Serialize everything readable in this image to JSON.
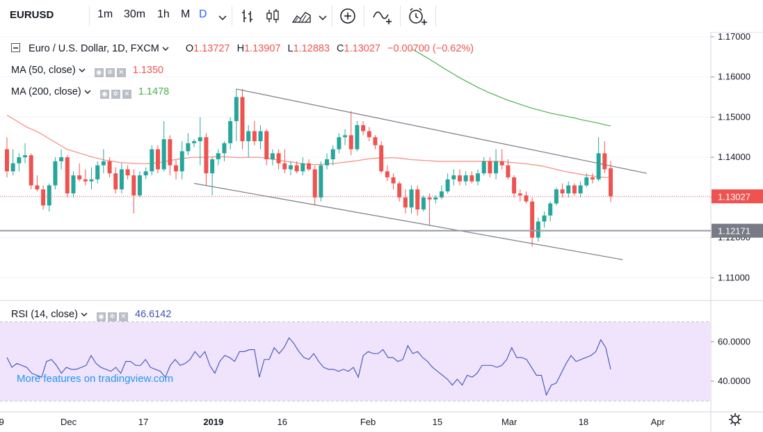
{
  "toolbar": {
    "symbol": "EURUSD",
    "intervals": [
      "1m",
      "30m",
      "1h",
      "M",
      "D"
    ],
    "active_interval": "D",
    "icons": [
      "chevron-down-icon",
      "bar-style-icon",
      "candles-icon",
      "area-icon",
      "chevron-down-icon",
      "add-indicator-icon",
      "compare-icon",
      "alert-icon"
    ]
  },
  "legend": {
    "title": "Euro / U.S. Dollar, 1D, FXCM",
    "open_label": "O",
    "open": "1.13727",
    "high_label": "H",
    "high": "1.13907",
    "low_label": "L",
    "low": "1.12883",
    "close_label": "C",
    "close": "1.13027",
    "change": "−0.00700 (−0.62%)",
    "ma50_label": "MA (50, close)",
    "ma50_value": "1.1350",
    "ma200_label": "MA (200, close)",
    "ma200_value": "1.1478",
    "rsi_label": "RSI (14, close)",
    "rsi_value": "46.6142"
  },
  "promo": "More features on tradingview.com",
  "colors": {
    "up": "#26a69a",
    "down": "#ef5350",
    "ma50": "#f48a7e",
    "ma200": "#4caf50",
    "rsi": "#3f51b5",
    "rsi_band": "#efe4fb",
    "channel": "#787b86",
    "support": "#9598a1"
  },
  "chart_data": [
    {
      "type": "candlestick",
      "title": "Euro / U.S. Dollar, 1D, FXCM",
      "y_axis": {
        "ticks": [
          "1.17000",
          "1.16000",
          "1.15000",
          "1.14000",
          "1.13000",
          "1.12000",
          "1.11000"
        ],
        "range": [
          1.1045,
          1.1712
        ],
        "last_price_label": "1.13027",
        "level_label": "1.12171"
      },
      "x_axis": {
        "ticks": [
          "9",
          "Dec",
          "17",
          "2019",
          "16",
          "Feb",
          "15",
          "Mar",
          "18",
          "Apr"
        ]
      },
      "candles": [
        {
          "o": 1.142,
          "h": 1.145,
          "l": 1.135,
          "c": 1.1365
        },
        {
          "o": 1.1365,
          "h": 1.142,
          "l": 1.1355,
          "c": 1.1385
        },
        {
          "o": 1.1385,
          "h": 1.141,
          "l": 1.1365,
          "c": 1.14
        },
        {
          "o": 1.14,
          "h": 1.1435,
          "l": 1.1385,
          "c": 1.1405
        },
        {
          "o": 1.1405,
          "h": 1.141,
          "l": 1.132,
          "c": 1.133
        },
        {
          "o": 1.133,
          "h": 1.1355,
          "l": 1.1315,
          "c": 1.132
        },
        {
          "o": 1.132,
          "h": 1.133,
          "l": 1.127,
          "c": 1.128
        },
        {
          "o": 1.128,
          "h": 1.1335,
          "l": 1.1265,
          "c": 1.133
        },
        {
          "o": 1.133,
          "h": 1.14,
          "l": 1.132,
          "c": 1.139
        },
        {
          "o": 1.139,
          "h": 1.142,
          "l": 1.137,
          "c": 1.14
        },
        {
          "o": 1.14,
          "h": 1.1405,
          "l": 1.13,
          "c": 1.131
        },
        {
          "o": 1.131,
          "h": 1.1365,
          "l": 1.13,
          "c": 1.1355
        },
        {
          "o": 1.1355,
          "h": 1.1385,
          "l": 1.134,
          "c": 1.1345
        },
        {
          "o": 1.1345,
          "h": 1.137,
          "l": 1.133,
          "c": 1.134
        },
        {
          "o": 1.134,
          "h": 1.1375,
          "l": 1.132,
          "c": 1.1345
        },
        {
          "o": 1.1345,
          "h": 1.139,
          "l": 1.1335,
          "c": 1.138
        },
        {
          "o": 1.138,
          "h": 1.142,
          "l": 1.136,
          "c": 1.139
        },
        {
          "o": 1.139,
          "h": 1.14,
          "l": 1.135,
          "c": 1.136
        },
        {
          "o": 1.136,
          "h": 1.1375,
          "l": 1.131,
          "c": 1.132
        },
        {
          "o": 1.132,
          "h": 1.1385,
          "l": 1.131,
          "c": 1.137
        },
        {
          "o": 1.137,
          "h": 1.138,
          "l": 1.1345,
          "c": 1.1355
        },
        {
          "o": 1.1355,
          "h": 1.137,
          "l": 1.126,
          "c": 1.1305
        },
        {
          "o": 1.1305,
          "h": 1.1365,
          "l": 1.13,
          "c": 1.1355
        },
        {
          "o": 1.1355,
          "h": 1.1375,
          "l": 1.1345,
          "c": 1.1365
        },
        {
          "o": 1.1365,
          "h": 1.143,
          "l": 1.1355,
          "c": 1.142
        },
        {
          "o": 1.142,
          "h": 1.143,
          "l": 1.136,
          "c": 1.137
        },
        {
          "o": 1.137,
          "h": 1.149,
          "l": 1.1365,
          "c": 1.1445
        },
        {
          "o": 1.1445,
          "h": 1.1455,
          "l": 1.1355,
          "c": 1.138
        },
        {
          "o": 1.138,
          "h": 1.1395,
          "l": 1.1345,
          "c": 1.1365
        },
        {
          "o": 1.1365,
          "h": 1.144,
          "l": 1.1345,
          "c": 1.1415
        },
        {
          "o": 1.1415,
          "h": 1.146,
          "l": 1.1405,
          "c": 1.1435
        },
        {
          "o": 1.1435,
          "h": 1.1445,
          "l": 1.1425,
          "c": 1.144
        },
        {
          "o": 1.144,
          "h": 1.15,
          "l": 1.138,
          "c": 1.145
        },
        {
          "o": 1.145,
          "h": 1.146,
          "l": 1.133,
          "c": 1.136
        },
        {
          "o": 1.136,
          "h": 1.14,
          "l": 1.1305,
          "c": 1.1395
        },
        {
          "o": 1.1395,
          "h": 1.142,
          "l": 1.138,
          "c": 1.141
        },
        {
          "o": 1.141,
          "h": 1.144,
          "l": 1.139,
          "c": 1.1435
        },
        {
          "o": 1.1435,
          "h": 1.15,
          "l": 1.142,
          "c": 1.149
        },
        {
          "o": 1.149,
          "h": 1.157,
          "l": 1.144,
          "c": 1.155
        },
        {
          "o": 1.155,
          "h": 1.157,
          "l": 1.142,
          "c": 1.144
        },
        {
          "o": 1.144,
          "h": 1.148,
          "l": 1.14,
          "c": 1.1465
        },
        {
          "o": 1.1465,
          "h": 1.149,
          "l": 1.143,
          "c": 1.144
        },
        {
          "o": 1.144,
          "h": 1.148,
          "l": 1.142,
          "c": 1.1465
        },
        {
          "o": 1.1465,
          "h": 1.147,
          "l": 1.138,
          "c": 1.1395
        },
        {
          "o": 1.1395,
          "h": 1.142,
          "l": 1.138,
          "c": 1.141
        },
        {
          "o": 1.141,
          "h": 1.142,
          "l": 1.137,
          "c": 1.1385
        },
        {
          "o": 1.1385,
          "h": 1.142,
          "l": 1.136,
          "c": 1.137
        },
        {
          "o": 1.137,
          "h": 1.139,
          "l": 1.1355,
          "c": 1.138
        },
        {
          "o": 1.138,
          "h": 1.139,
          "l": 1.136,
          "c": 1.1365
        },
        {
          "o": 1.1365,
          "h": 1.14,
          "l": 1.1355,
          "c": 1.1385
        },
        {
          "o": 1.1385,
          "h": 1.1395,
          "l": 1.1365,
          "c": 1.137
        },
        {
          "o": 1.137,
          "h": 1.138,
          "l": 1.128,
          "c": 1.13
        },
        {
          "o": 1.13,
          "h": 1.139,
          "l": 1.129,
          "c": 1.138
        },
        {
          "o": 1.138,
          "h": 1.141,
          "l": 1.137,
          "c": 1.1395
        },
        {
          "o": 1.1395,
          "h": 1.143,
          "l": 1.138,
          "c": 1.142
        },
        {
          "o": 1.142,
          "h": 1.146,
          "l": 1.141,
          "c": 1.145
        },
        {
          "o": 1.145,
          "h": 1.147,
          "l": 1.143,
          "c": 1.1455
        },
        {
          "o": 1.1455,
          "h": 1.1515,
          "l": 1.1405,
          "c": 1.142
        },
        {
          "o": 1.142,
          "h": 1.149,
          "l": 1.1415,
          "c": 1.148
        },
        {
          "o": 1.148,
          "h": 1.149,
          "l": 1.1455,
          "c": 1.1465
        },
        {
          "o": 1.1465,
          "h": 1.1475,
          "l": 1.144,
          "c": 1.145
        },
        {
          "o": 1.145,
          "h": 1.1455,
          "l": 1.142,
          "c": 1.143
        },
        {
          "o": 1.143,
          "h": 1.144,
          "l": 1.136,
          "c": 1.1365
        },
        {
          "o": 1.1365,
          "h": 1.138,
          "l": 1.134,
          "c": 1.135
        },
        {
          "o": 1.135,
          "h": 1.136,
          "l": 1.132,
          "c": 1.1335
        },
        {
          "o": 1.1335,
          "h": 1.134,
          "l": 1.129,
          "c": 1.13
        },
        {
          "o": 1.13,
          "h": 1.132,
          "l": 1.126,
          "c": 1.1275
        },
        {
          "o": 1.1275,
          "h": 1.133,
          "l": 1.126,
          "c": 1.132
        },
        {
          "o": 1.132,
          "h": 1.133,
          "l": 1.1255,
          "c": 1.127
        },
        {
          "o": 1.127,
          "h": 1.1305,
          "l": 1.1265,
          "c": 1.13
        },
        {
          "o": 1.13,
          "h": 1.131,
          "l": 1.123,
          "c": 1.1295
        },
        {
          "o": 1.1295,
          "h": 1.1305,
          "l": 1.1285,
          "c": 1.13
        },
        {
          "o": 1.13,
          "h": 1.133,
          "l": 1.1295,
          "c": 1.1315
        },
        {
          "o": 1.1315,
          "h": 1.136,
          "l": 1.131,
          "c": 1.1345
        },
        {
          "o": 1.1345,
          "h": 1.137,
          "l": 1.133,
          "c": 1.1355
        },
        {
          "o": 1.1355,
          "h": 1.137,
          "l": 1.133,
          "c": 1.134
        },
        {
          "o": 1.134,
          "h": 1.1365,
          "l": 1.133,
          "c": 1.1355
        },
        {
          "o": 1.1355,
          "h": 1.1365,
          "l": 1.1335,
          "c": 1.134
        },
        {
          "o": 1.134,
          "h": 1.137,
          "l": 1.133,
          "c": 1.136
        },
        {
          "o": 1.136,
          "h": 1.14,
          "l": 1.1355,
          "c": 1.139
        },
        {
          "o": 1.139,
          "h": 1.14,
          "l": 1.135,
          "c": 1.136
        },
        {
          "o": 1.136,
          "h": 1.142,
          "l": 1.1345,
          "c": 1.139
        },
        {
          "o": 1.139,
          "h": 1.142,
          "l": 1.137,
          "c": 1.138
        },
        {
          "o": 1.138,
          "h": 1.1395,
          "l": 1.1345,
          "c": 1.135
        },
        {
          "o": 1.135,
          "h": 1.1355,
          "l": 1.13,
          "c": 1.131
        },
        {
          "o": 1.131,
          "h": 1.132,
          "l": 1.129,
          "c": 1.1305
        },
        {
          "o": 1.1305,
          "h": 1.1315,
          "l": 1.1285,
          "c": 1.129
        },
        {
          "o": 1.129,
          "h": 1.13,
          "l": 1.1178,
          "c": 1.12
        },
        {
          "o": 1.12,
          "h": 1.125,
          "l": 1.119,
          "c": 1.124
        },
        {
          "o": 1.124,
          "h": 1.1265,
          "l": 1.1225,
          "c": 1.1255
        },
        {
          "o": 1.1255,
          "h": 1.129,
          "l": 1.124,
          "c": 1.1285
        },
        {
          "o": 1.1285,
          "h": 1.1325,
          "l": 1.128,
          "c": 1.132
        },
        {
          "o": 1.132,
          "h": 1.1335,
          "l": 1.13,
          "c": 1.131
        },
        {
          "o": 1.131,
          "h": 1.134,
          "l": 1.13,
          "c": 1.133
        },
        {
          "o": 1.133,
          "h": 1.1335,
          "l": 1.1305,
          "c": 1.131
        },
        {
          "o": 1.131,
          "h": 1.134,
          "l": 1.13,
          "c": 1.133
        },
        {
          "o": 1.133,
          "h": 1.136,
          "l": 1.1325,
          "c": 1.135
        },
        {
          "o": 1.135,
          "h": 1.136,
          "l": 1.1335,
          "c": 1.1345
        },
        {
          "o": 1.1345,
          "h": 1.145,
          "l": 1.134,
          "c": 1.141
        },
        {
          "o": 1.141,
          "h": 1.144,
          "l": 1.136,
          "c": 1.137
        },
        {
          "o": 1.13727,
          "h": 1.13907,
          "l": 1.12883,
          "c": 1.13027
        }
      ],
      "ma50": [
        1.1505,
        1.1495,
        1.1485,
        1.1475,
        1.1468,
        1.146,
        1.145,
        1.144,
        1.143,
        1.142,
        1.1415,
        1.141,
        1.1405,
        1.14,
        1.1396,
        1.1392,
        1.139,
        1.1387,
        1.1386,
        1.1385,
        1.1384,
        1.1384,
        1.1385,
        1.1387,
        1.139,
        1.1393,
        1.1396,
        1.1398,
        1.14,
        1.14,
        1.14,
        1.1401,
        1.1402,
        1.1401,
        1.14,
        1.1399,
        1.14,
        1.14,
        1.14,
        1.1398,
        1.1395,
        1.1393,
        1.139,
        1.1388,
        1.1385,
        1.1383,
        1.1382,
        1.1382,
        1.1383,
        1.1384,
        1.1386,
        1.1388,
        1.139,
        1.1392,
        1.1395,
        1.1397,
        1.1398,
        1.1398,
        1.1399,
        1.1398,
        1.1396,
        1.1394,
        1.1393,
        1.1392,
        1.1391,
        1.139,
        1.139,
        1.139,
        1.139,
        1.139,
        1.139,
        1.139,
        1.139,
        1.139,
        1.139,
        1.1389,
        1.1387,
        1.1386,
        1.1384,
        1.1382,
        1.138,
        1.1377,
        1.1373,
        1.1369,
        1.1365,
        1.1362,
        1.1359,
        1.1356,
        1.1354,
        1.1352,
        1.135,
        1.135
      ],
      "ma200": [
        1.167,
        1.1662,
        1.1653,
        1.1644,
        1.1635,
        1.1625,
        1.1616,
        1.1607,
        1.1598,
        1.159,
        1.1582,
        1.1574,
        1.1567,
        1.156,
        1.1554,
        1.1548,
        1.1542,
        1.1537,
        1.1532,
        1.1527,
        1.1522,
        1.1518,
        1.1514,
        1.151,
        1.1507,
        1.1504,
        1.1501,
        1.1498,
        1.1494,
        1.1491,
        1.1488,
        1.1485,
        1.1481,
        1.1478
      ],
      "trendlines": [
        {
          "name": "channel-upper",
          "from": [
            38,
            1.157
          ],
          "to": [
            106,
            1.136
          ]
        },
        {
          "name": "channel-lower",
          "from": [
            31,
            1.1335
          ],
          "to": [
            102,
            1.1145
          ]
        }
      ],
      "support_level": 1.12171
    },
    {
      "type": "line",
      "title": "RSI (14, close)",
      "y_axis": {
        "ticks": [
          "60.0000",
          "40.0000"
        ],
        "range": [
          25.5,
          79.5
        ],
        "band": [
          30,
          70
        ]
      },
      "values": [
        52,
        47,
        49,
        48,
        47,
        44,
        43,
        42,
        50,
        51,
        48,
        44,
        47,
        46,
        46,
        47,
        48,
        53,
        49,
        47,
        46,
        45,
        47,
        44,
        50,
        50,
        48,
        48,
        51,
        47,
        46,
        45,
        42,
        48,
        51,
        48,
        49,
        51,
        55,
        52,
        55,
        48,
        44,
        50,
        53,
        52,
        50,
        55,
        55,
        56,
        56,
        42,
        51,
        51,
        57,
        54,
        57,
        62,
        59,
        55,
        52,
        51,
        54,
        50,
        47,
        46,
        46,
        45,
        46,
        45,
        47,
        42,
        53,
        55,
        54,
        54,
        56,
        52,
        52,
        50,
        51,
        58,
        54,
        55,
        52,
        50,
        47,
        45,
        43,
        41,
        38,
        41,
        38,
        43,
        42,
        44,
        48,
        48,
        48,
        47,
        48,
        51,
        57,
        52,
        52,
        51,
        47,
        43,
        43,
        33,
        38,
        39,
        44,
        49,
        53,
        50,
        51,
        52,
        53,
        55,
        61,
        57,
        46
      ]
    }
  ]
}
